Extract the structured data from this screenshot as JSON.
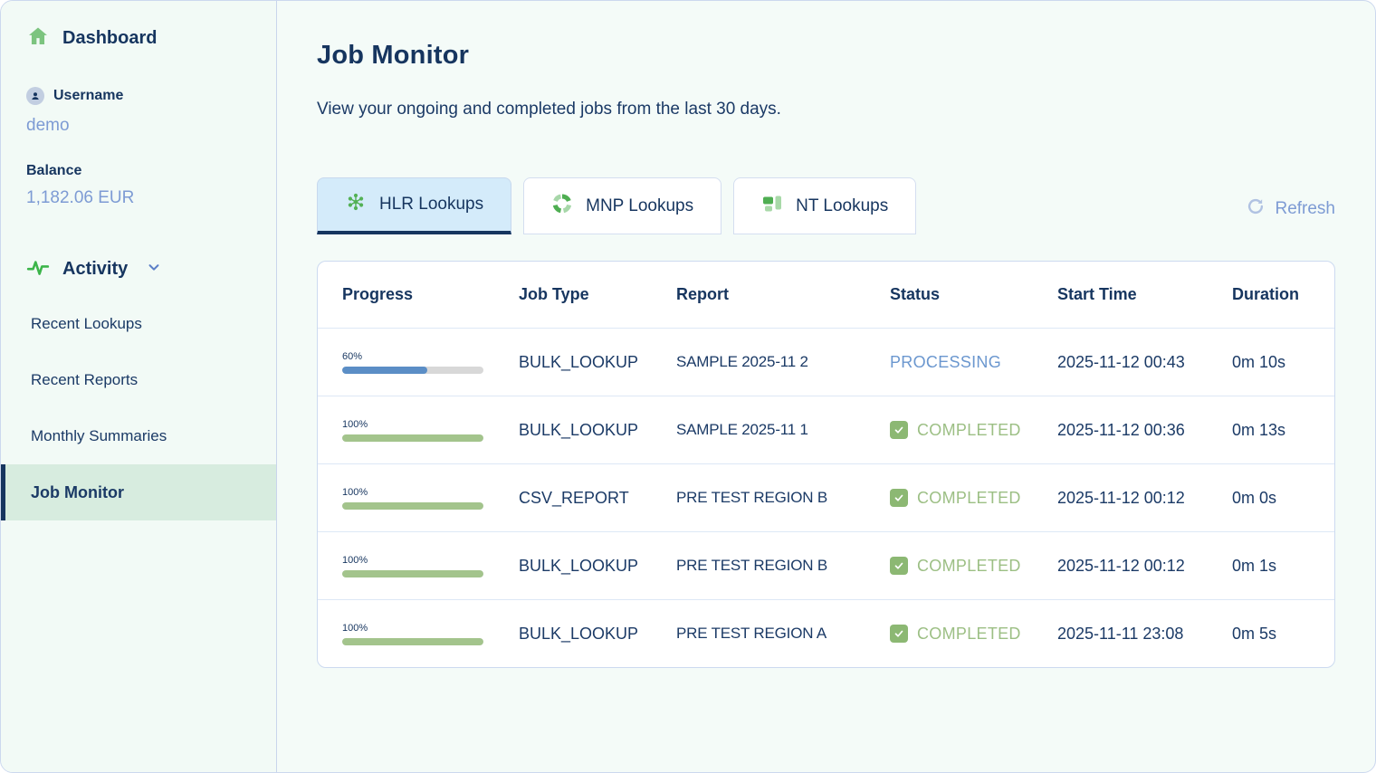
{
  "sidebar": {
    "dashboard_label": "Dashboard",
    "username_label": "Username",
    "username_value": "demo",
    "balance_label": "Balance",
    "balance_value": "1,182.06 EUR",
    "activity_label": "Activity",
    "items": [
      {
        "label": "Recent Lookups",
        "active": false
      },
      {
        "label": "Recent Reports",
        "active": false
      },
      {
        "label": "Monthly Summaries",
        "active": false
      },
      {
        "label": "Job Monitor",
        "active": true
      }
    ]
  },
  "main": {
    "title": "Job Monitor",
    "subtitle": "View your ongoing and completed jobs from the last 30 days.",
    "tabs": [
      {
        "label": "HLR Lookups",
        "icon": "hlr-dots-icon",
        "active": true
      },
      {
        "label": "MNP Lookups",
        "icon": "mnp-segments-icon",
        "active": false
      },
      {
        "label": "NT Lookups",
        "icon": "nt-blocks-icon",
        "active": false
      }
    ],
    "refresh_label": "Refresh",
    "table": {
      "columns": [
        "Progress",
        "Job Type",
        "Report",
        "Status",
        "Start Time",
        "Duration"
      ],
      "rows": [
        {
          "progress_pct": 60,
          "progress_label": "60%",
          "job_type": "BULK_LOOKUP",
          "report": "SAMPLE 2025-11 2",
          "status": "PROCESSING",
          "status_kind": "processing",
          "start_time": "2025-11-12 00:43",
          "duration": "0m 10s"
        },
        {
          "progress_pct": 100,
          "progress_label": "100%",
          "job_type": "BULK_LOOKUP",
          "report": "SAMPLE 2025-11 1",
          "status": "COMPLETED",
          "status_kind": "completed",
          "start_time": "2025-11-12 00:36",
          "duration": "0m 13s"
        },
        {
          "progress_pct": 100,
          "progress_label": "100%",
          "job_type": "CSV_REPORT",
          "report": "PRE TEST REGION B",
          "status": "COMPLETED",
          "status_kind": "completed",
          "start_time": "2025-11-12 00:12",
          "duration": "0m 0s"
        },
        {
          "progress_pct": 100,
          "progress_label": "100%",
          "job_type": "BULK_LOOKUP",
          "report": "PRE TEST REGION B",
          "status": "COMPLETED",
          "status_kind": "completed",
          "start_time": "2025-11-12 00:12",
          "duration": "0m 1s"
        },
        {
          "progress_pct": 100,
          "progress_label": "100%",
          "job_type": "BULK_LOOKUP",
          "report": "PRE TEST REGION A",
          "status": "COMPLETED",
          "status_kind": "completed",
          "start_time": "2025-11-11 23:08",
          "duration": "0m 5s"
        }
      ]
    }
  },
  "colors": {
    "accent_navy": "#16355f",
    "link_blue": "#7d9bd4",
    "processing_blue": "#6b97cf",
    "completed_green": "#9cbf84",
    "progress_blue": "#5b8ec6",
    "progress_green": "#a3c48c",
    "active_tab_bg": "#d4ebfa",
    "active_sidebar_bg": "#d7ecdf",
    "icon_green": "#53b155"
  }
}
